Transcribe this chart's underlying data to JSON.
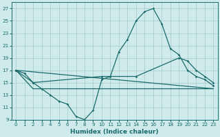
{
  "xlabel": "Humidex (Indice chaleur)",
  "bg_color": "#ceeaea",
  "grid_color": "#aacece",
  "line_color": "#1a6b6b",
  "ylim": [
    9,
    28
  ],
  "xlim": [
    -0.5,
    23.5
  ],
  "yticks": [
    9,
    11,
    13,
    15,
    17,
    19,
    21,
    23,
    25,
    27
  ],
  "xticks": [
    0,
    1,
    2,
    3,
    4,
    5,
    6,
    7,
    8,
    9,
    10,
    11,
    12,
    13,
    14,
    15,
    16,
    17,
    18,
    19,
    20,
    21,
    22,
    23
  ],
  "series1_x": [
    0,
    1,
    2,
    3,
    4,
    5,
    6,
    7,
    8,
    9,
    10,
    11,
    12,
    13,
    14,
    15,
    16,
    17,
    18,
    19,
    20,
    21,
    22,
    23
  ],
  "series1_y": [
    17,
    16.5,
    15,
    14,
    13,
    12,
    11.5,
    9.5,
    9,
    10.5,
    15.5,
    16,
    20,
    22,
    25,
    26.5,
    27,
    24.5,
    20.5,
    19.5,
    17,
    16,
    15.5,
    14.5
  ],
  "series2_x": [
    0,
    23
  ],
  "series2_y": [
    17,
    14
  ],
  "series3_x": [
    0,
    2,
    10,
    14,
    19,
    20,
    21,
    22,
    23
  ],
  "series3_y": [
    17,
    15,
    16,
    16,
    19,
    18.5,
    17,
    16,
    15
  ],
  "series4_x": [
    0,
    2,
    10,
    14,
    20,
    23
  ],
  "series4_y": [
    17,
    14,
    14,
    14,
    14,
    14
  ]
}
